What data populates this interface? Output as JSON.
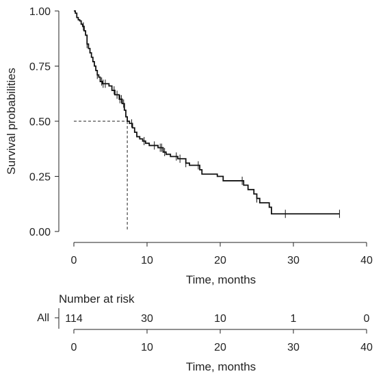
{
  "chart_data": {
    "type": "line",
    "subtype": "kaplan-meier",
    "xlabel": "Time, months",
    "ylabel": "Survival probabilities",
    "xlim": [
      0,
      40
    ],
    "ylim": [
      0,
      1
    ],
    "x_ticks": [
      "0",
      "10",
      "20",
      "30",
      "40"
    ],
    "y_ticks": [
      "0.00",
      "0.25",
      "0.50",
      "0.75",
      "1.00"
    ],
    "legend": "none",
    "median_survival_months": 7.3,
    "median_survival_probability": 0.5,
    "series": [
      {
        "steps": [
          [
            0,
            1.0
          ],
          [
            0.2,
            0.99
          ],
          [
            0.4,
            0.97
          ],
          [
            0.6,
            0.96
          ],
          [
            0.8,
            0.955
          ],
          [
            1.0,
            0.94
          ],
          [
            1.2,
            0.93
          ],
          [
            1.4,
            0.91
          ],
          [
            1.6,
            0.89
          ],
          [
            1.8,
            0.85
          ],
          [
            2.0,
            0.83
          ],
          [
            2.2,
            0.81
          ],
          [
            2.4,
            0.79
          ],
          [
            2.6,
            0.77
          ],
          [
            2.8,
            0.75
          ],
          [
            3.0,
            0.73
          ],
          [
            3.2,
            0.71
          ],
          [
            3.4,
            0.7
          ],
          [
            3.6,
            0.68
          ],
          [
            3.9,
            0.67
          ],
          [
            4.8,
            0.66
          ],
          [
            5.2,
            0.64
          ],
          [
            5.6,
            0.62
          ],
          [
            6.2,
            0.6
          ],
          [
            6.6,
            0.58
          ],
          [
            6.9,
            0.55
          ],
          [
            7.1,
            0.52
          ],
          [
            7.3,
            0.5
          ],
          [
            7.6,
            0.49
          ],
          [
            8.0,
            0.47
          ],
          [
            8.3,
            0.45
          ],
          [
            8.6,
            0.43
          ],
          [
            9.0,
            0.42
          ],
          [
            9.4,
            0.41
          ],
          [
            9.8,
            0.4
          ],
          [
            10.3,
            0.39
          ],
          [
            11.5,
            0.38
          ],
          [
            12.2,
            0.36
          ],
          [
            12.6,
            0.35
          ],
          [
            13.2,
            0.34
          ],
          [
            14.2,
            0.33
          ],
          [
            15.3,
            0.31
          ],
          [
            15.8,
            0.3
          ],
          [
            17.2,
            0.28
          ],
          [
            17.5,
            0.26
          ],
          [
            19.6,
            0.25
          ],
          [
            19.8,
            0.25
          ],
          [
            20.4,
            0.23
          ],
          [
            22.9,
            0.23
          ],
          [
            23.2,
            0.21
          ],
          [
            23.8,
            0.19
          ],
          [
            24.6,
            0.17
          ],
          [
            25.0,
            0.15
          ],
          [
            25.4,
            0.13
          ],
          [
            26.7,
            0.11
          ],
          [
            27.0,
            0.08
          ],
          [
            36.3,
            0.08
          ]
        ],
        "censor_times": [
          1.3,
          1.8,
          3.2,
          3.8,
          4.0,
          4.3,
          5.5,
          5.9,
          6.3,
          6.5,
          6.8,
          7.9,
          9.6,
          11.0,
          11.8,
          12.0,
          12.4,
          14.0,
          14.5,
          15.3,
          17.0,
          23.0,
          25.0,
          28.9,
          36.3
        ]
      }
    ],
    "risk_table": {
      "title": "Number at risk",
      "strata_label": "All",
      "times": [
        0,
        10,
        20,
        30,
        40
      ],
      "counts": [
        "114",
        "30",
        "10",
        "1",
        "0"
      ],
      "xlabel": "Time, months",
      "x_ticks": [
        "0",
        "10",
        "20",
        "30",
        "40"
      ]
    }
  }
}
